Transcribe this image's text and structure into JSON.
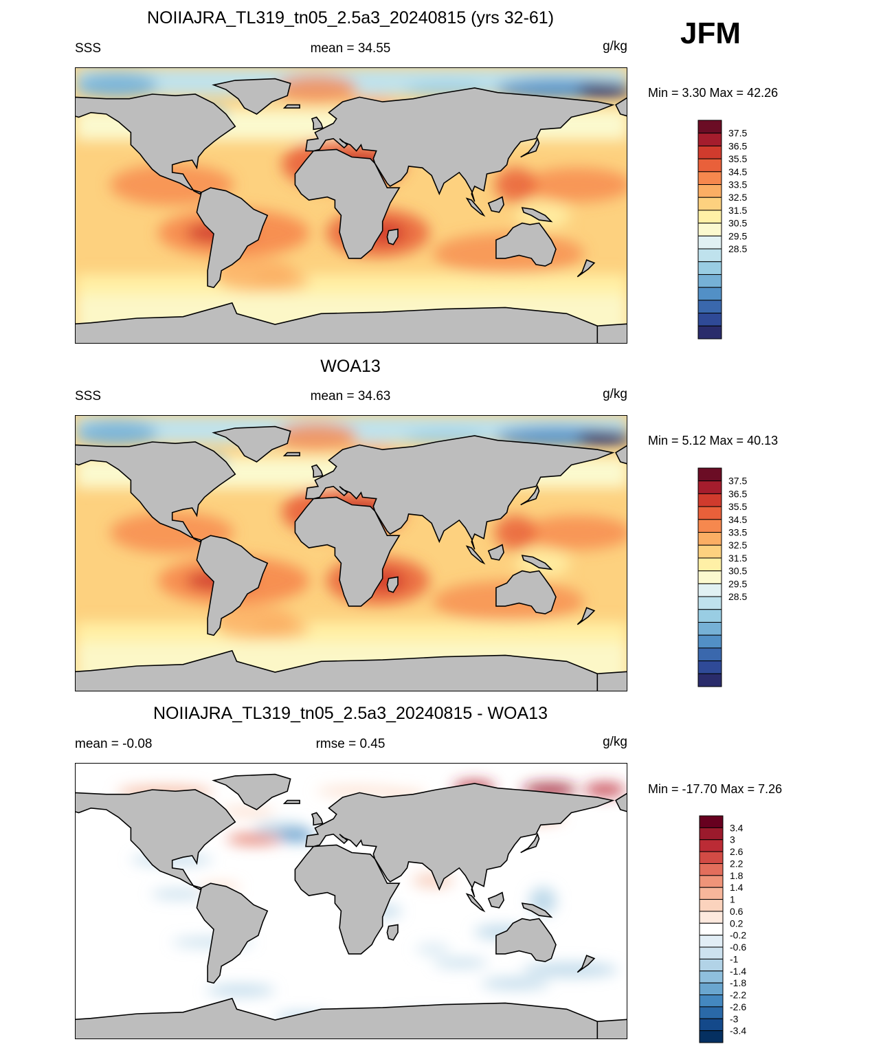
{
  "season": "JFM",
  "panels": [
    {
      "title": "NOIIAJRA_TL319_tn05_2.5a3_20240815 (yrs 32-61)",
      "left_label": "SSS",
      "center_label": "mean =  34.55",
      "units": "g/kg",
      "minmax": "Min =   3.30 Max =  42.26",
      "palette": "abs"
    },
    {
      "title": "WOA13",
      "left_label": "SSS",
      "center_label": "mean =  34.63",
      "units": "g/kg",
      "minmax": "Min =   5.12 Max =  40.13",
      "palette": "abs"
    },
    {
      "title": "NOIIAJRA_TL319_tn05_2.5a3_20240815 - WOA13",
      "left_label": "mean =  -0.08",
      "center_label": "rmse =   0.45",
      "units": "g/kg",
      "minmax": "Min = -17.70 Max =   7.26",
      "palette": "diff"
    }
  ],
  "colorbars": {
    "abs": {
      "labels": [
        "37.5",
        "36.5",
        "35.5",
        "34.5",
        "33.5",
        "32.5",
        "31.5",
        "30.5",
        "29.5",
        "28.5"
      ],
      "colors": [
        "#6b0d25",
        "#a51d2d",
        "#d03b2d",
        "#e9603a",
        "#f6884e",
        "#fbae64",
        "#fdd17f",
        "#fff0a6",
        "#fbf9cf",
        "#e1f1f3",
        "#bfe2ed",
        "#99cde3",
        "#76b1d6",
        "#5290c6",
        "#3a68ad",
        "#2f4a97",
        "#2a2c6b"
      ]
    },
    "diff": {
      "labels": [
        "3.4",
        "3",
        "2.6",
        "2.2",
        "1.8",
        "1.4",
        "1",
        "0.6",
        "0.2",
        "-0.2",
        "-0.6",
        "-1",
        "-1.4",
        "-1.8",
        "-2.2",
        "-2.6",
        "-3",
        "-3.4"
      ],
      "colors": [
        "#67001f",
        "#9b1a2c",
        "#bb2b35",
        "#d24b45",
        "#e36e5c",
        "#ef9479",
        "#f7b69b",
        "#fbd3bd",
        "#fde9de",
        "#ffffff",
        "#e2eef6",
        "#cde2ef",
        "#b2d3e7",
        "#8fbfdd",
        "#6aa6cf",
        "#4488c0",
        "#2a69a8",
        "#14498a",
        "#053061"
      ]
    }
  }
}
